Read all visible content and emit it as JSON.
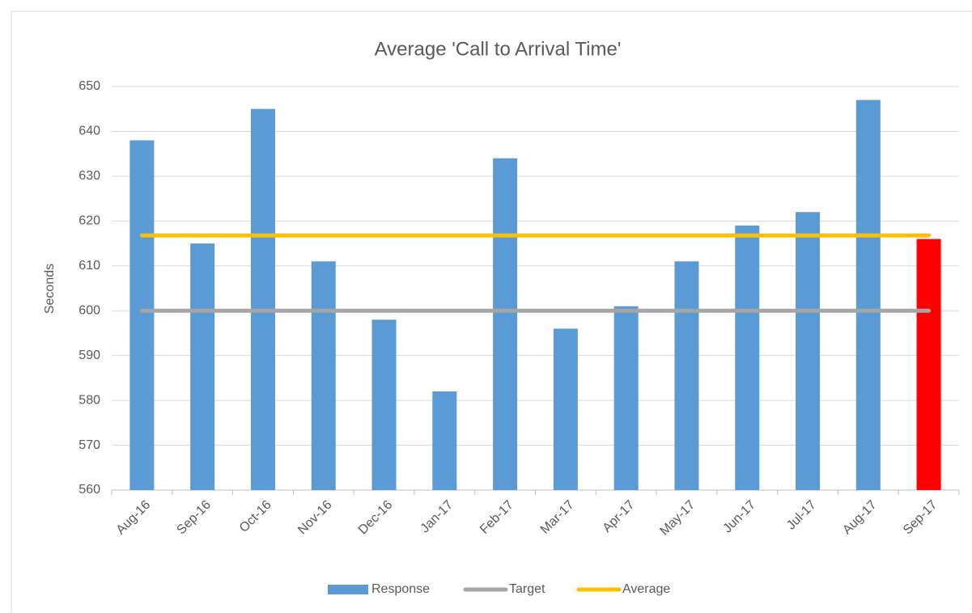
{
  "chart_data": {
    "type": "bar",
    "title": "Average 'Call to Arrival Time'",
    "y_label": "Seconds",
    "categories": [
      "Aug-16",
      "Sep-16",
      "Oct-16",
      "Nov-16",
      "Dec-16",
      "Jan-17",
      "Feb-17",
      "Mar-17",
      "Apr-17",
      "May-17",
      "Jun-17",
      "Jul-17",
      "Aug-17",
      "Sep-17"
    ],
    "series": [
      {
        "name": "Response",
        "type": "bar",
        "color": "#5b9bd5",
        "colors": [
          "#5b9bd5",
          "#5b9bd5",
          "#5b9bd5",
          "#5b9bd5",
          "#5b9bd5",
          "#5b9bd5",
          "#5b9bd5",
          "#5b9bd5",
          "#5b9bd5",
          "#5b9bd5",
          "#5b9bd5",
          "#5b9bd5",
          "#5b9bd5",
          "#ff0000"
        ],
        "values": [
          638,
          615,
          645,
          611,
          598,
          582,
          634,
          596,
          601,
          611,
          619,
          622,
          647,
          616
        ]
      },
      {
        "name": "Target",
        "type": "line",
        "color": "#a5a5a5",
        "values": [
          600,
          600,
          600,
          600,
          600,
          600,
          600,
          600,
          600,
          600,
          600,
          600,
          600,
          600
        ]
      },
      {
        "name": "Average",
        "type": "line",
        "color": "#ffc000",
        "values": [
          616.8,
          616.8,
          616.8,
          616.8,
          616.8,
          616.8,
          616.8,
          616.8,
          616.8,
          616.8,
          616.8,
          616.8,
          616.8,
          616.8
        ]
      }
    ],
    "ylim": [
      560,
      650
    ],
    "yticks": [
      560,
      570,
      580,
      590,
      600,
      610,
      620,
      630,
      640,
      650
    ],
    "grid": true,
    "legend": "bottom"
  }
}
